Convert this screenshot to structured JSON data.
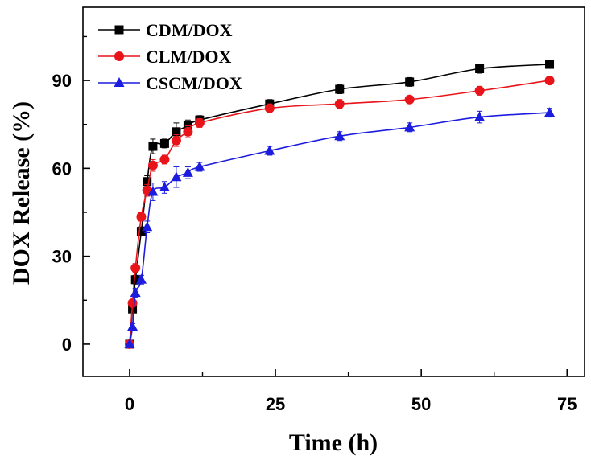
{
  "chart_data": {
    "type": "line",
    "title": "",
    "xlabel": "Time (h)",
    "ylabel": "DOX Release (%)",
    "xlim": [
      -8,
      78
    ],
    "ylim": [
      -11,
      115
    ],
    "xticks": [
      0,
      25,
      50,
      75
    ],
    "yticks": [
      0,
      30,
      60,
      90
    ],
    "grid": false,
    "legend_position": "top-left",
    "series": [
      {
        "name": "CDM/DOX",
        "color": "#000000",
        "marker": "square",
        "x": [
          0,
          0.5,
          1,
          2,
          3,
          4,
          6,
          8,
          10,
          12,
          24,
          36,
          48,
          60,
          72
        ],
        "y": [
          0,
          12,
          22,
          38.5,
          55.5,
          67.5,
          68.5,
          72.5,
          74.5,
          76.5,
          82,
          87,
          89.5,
          94,
          95.5
        ],
        "err": [
          0,
          1,
          1.5,
          1.5,
          2,
          2.5,
          1.5,
          3,
          2,
          1.5,
          1.5,
          1.5,
          1.5,
          1.5,
          1.2
        ]
      },
      {
        "name": "CLM/DOX",
        "color": "#e8141a",
        "marker": "circle",
        "x": [
          0,
          0.5,
          1,
          2,
          3,
          4,
          6,
          8,
          10,
          12,
          24,
          36,
          48,
          60,
          72
        ],
        "y": [
          0,
          14,
          26,
          43.5,
          52.5,
          61,
          63,
          69.5,
          72.5,
          75.5,
          80.5,
          82,
          83.5,
          86.5,
          90
        ],
        "err": [
          0,
          1,
          1.5,
          1.5,
          2,
          2,
          1.5,
          2,
          2,
          1.5,
          1.5,
          1.5,
          1.2,
          1.5,
          1.2
        ]
      },
      {
        "name": "CSCM/DOX",
        "color": "#1c1cde",
        "marker": "triangle",
        "x": [
          0,
          0.5,
          1,
          2,
          3,
          4,
          6,
          8,
          10,
          12,
          24,
          36,
          48,
          60,
          72
        ],
        "y": [
          0,
          6,
          17.5,
          22,
          40,
          52,
          53.5,
          57,
          58.5,
          60.5,
          66,
          71,
          74,
          77.5,
          79
        ],
        "err": [
          0,
          1,
          1.5,
          1.5,
          2,
          3,
          2,
          3.5,
          2,
          1.5,
          1.5,
          1.5,
          1.5,
          2,
          1.5
        ]
      }
    ]
  }
}
